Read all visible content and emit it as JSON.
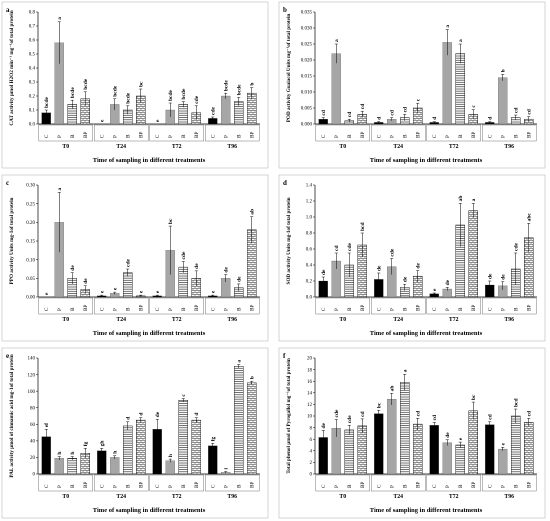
{
  "chart_data": [
    {
      "type": "bar",
      "panel": "a",
      "ylabel": "CAT activity µmol H2O2 min⁻¹ mg⁻¹of total protein",
      "xlabel": "Time of sampling in different treatments",
      "groups": [
        "T0",
        "T24",
        "T72",
        "T96"
      ],
      "categories": [
        "C",
        "P",
        "B",
        "BP"
      ],
      "ylim": [
        0,
        0.8
      ],
      "yticks": [
        0,
        0.1,
        0.2,
        0.3,
        0.4,
        0.5,
        0.6,
        0.7,
        0.8
      ],
      "tick_decimals": 1,
      "values": [
        [
          0.08,
          0.58,
          0.14,
          0.18
        ],
        [
          0.0,
          0.14,
          0.1,
          0.2
        ],
        [
          0.0,
          0.1,
          0.14,
          0.08
        ],
        [
          0.04,
          0.2,
          0.16,
          0.22
        ]
      ],
      "errors": [
        [
          0.02,
          0.15,
          0.03,
          0.05
        ],
        [
          0.0,
          0.04,
          0.03,
          0.05
        ],
        [
          0.0,
          0.05,
          0.02,
          0.05
        ],
        [
          0.01,
          0.02,
          0.03,
          0.04
        ]
      ],
      "letters": [
        [
          "bcde",
          "a",
          "bcde",
          "bcde"
        ],
        [
          "e",
          "bcde",
          "bcde",
          "bc"
        ],
        [
          "e",
          "bcde",
          "bcde",
          "cde"
        ],
        [
          "cde",
          "bcde",
          "bcde",
          "b"
        ]
      ]
    },
    {
      "type": "bar",
      "panel": "b",
      "ylabel": "POD activity Guaiacol Units mg⁻¹of total protein",
      "xlabel": "Time of sampling in different treatments",
      "groups": [
        "T0",
        "T24",
        "T72",
        "T96"
      ],
      "categories": [
        "C",
        "P",
        "B",
        "BP"
      ],
      "ylim": [
        0,
        0.035
      ],
      "yticks": [
        0,
        0.005,
        0.01,
        0.015,
        0.02,
        0.025,
        0.03,
        0.035
      ],
      "tick_decimals": 3,
      "values": [
        [
          0.0015,
          0.022,
          0.001,
          0.003
        ],
        [
          0.0005,
          0.0015,
          0.002,
          0.005
        ],
        [
          0.0005,
          0.0255,
          0.022,
          0.003
        ],
        [
          0.0005,
          0.0145,
          0.002,
          0.0015
        ]
      ],
      "errors": [
        [
          0.0005,
          0.003,
          0.0005,
          0.001
        ],
        [
          0.0002,
          0.0005,
          0.001,
          0.0015
        ],
        [
          0.0002,
          0.004,
          0.003,
          0.0015
        ],
        [
          0.0002,
          0.001,
          0.0008,
          0.0008
        ]
      ],
      "letters": [
        [
          "cd",
          "a",
          "cd",
          "cd"
        ],
        [
          "d",
          "cd",
          "cd",
          "c"
        ],
        [
          "d",
          "a",
          "a",
          "c"
        ],
        [
          "d",
          "b",
          "cd",
          "cd"
        ]
      ]
    },
    {
      "type": "bar",
      "panel": "c",
      "ylabel": "PPO activity Units mg-1of total protein",
      "xlabel": "Time of sampling in different treatments",
      "groups": [
        "T0",
        "T24",
        "T72",
        "T96"
      ],
      "categories": [
        "C",
        "P",
        "B",
        "BP"
      ],
      "ylim": [
        0,
        0.3
      ],
      "yticks": [
        0,
        0.05,
        0.1,
        0.15,
        0.2,
        0.25,
        0.3
      ],
      "tick_decimals": 2,
      "values": [
        [
          0.0,
          0.2,
          0.05,
          0.02
        ],
        [
          0.003,
          0.01,
          0.065,
          0.003
        ],
        [
          0.003,
          0.125,
          0.08,
          0.05
        ],
        [
          0.003,
          0.05,
          0.025,
          0.18
        ]
      ],
      "errors": [
        [
          0.0,
          0.08,
          0.015,
          0.01
        ],
        [
          0.002,
          0.003,
          0.01,
          0.002
        ],
        [
          0.002,
          0.065,
          0.015,
          0.02
        ],
        [
          0.002,
          0.01,
          0.01,
          0.035
        ]
      ],
      "letters": [
        [
          "e",
          "a",
          "de",
          "de"
        ],
        [
          "e",
          "e",
          "cde",
          "e"
        ],
        [
          "e",
          "bc",
          "cde",
          "de"
        ],
        [
          "e",
          "de",
          "de",
          "ab"
        ]
      ]
    },
    {
      "type": "bar",
      "panel": "d",
      "ylabel": "SOD activity Units mg-1of total protein",
      "xlabel": "Time of sampling in different treatments",
      "groups": [
        "T0",
        "T24",
        "T72",
        "T96"
      ],
      "categories": [
        "C",
        "P",
        "B",
        "BP"
      ],
      "ylim": [
        0,
        1.4
      ],
      "yticks": [
        0,
        0.2,
        0.4,
        0.6,
        0.8,
        1,
        1.2,
        1.4
      ],
      "tick_decimals": 1,
      "values": [
        [
          0.2,
          0.45,
          0.4,
          0.65
        ],
        [
          0.22,
          0.38,
          0.12,
          0.26
        ],
        [
          0.04,
          0.1,
          0.9,
          1.08
        ],
        [
          0.15,
          0.14,
          0.35,
          0.74
        ]
      ],
      "errors": [
        [
          0.05,
          0.1,
          0.15,
          0.15
        ],
        [
          0.08,
          0.1,
          0.04,
          0.07
        ],
        [
          0.01,
          0.02,
          0.27,
          0.09
        ],
        [
          0.05,
          0.05,
          0.2,
          0.18
        ]
      ],
      "letters": [
        [
          "de",
          "cd",
          "cde",
          "bcd"
        ],
        [
          "de",
          "cde",
          "de",
          "de"
        ],
        [
          "e",
          "de",
          "ab",
          "a"
        ],
        [
          "de",
          "de",
          "cde",
          "abc"
        ]
      ]
    },
    {
      "type": "bar",
      "panel": "e",
      "ylabel": "PAL activity µmol of cinnamic acid mg-1of total protein",
      "xlabel": "Time of sampling in different treatments",
      "groups": [
        "T0",
        "T24",
        "T72",
        "T96"
      ],
      "categories": [
        "C",
        "P",
        "B",
        "BP"
      ],
      "ylim": [
        0,
        140
      ],
      "yticks": [
        0,
        20,
        40,
        60,
        80,
        100,
        120,
        140
      ],
      "tick_decimals": 0,
      "values": [
        [
          45,
          19,
          19,
          25
        ],
        [
          28,
          20,
          58,
          65
        ],
        [
          54,
          16,
          89,
          65
        ],
        [
          34,
          2,
          130,
          110
        ]
      ],
      "errors": [
        [
          9,
          2,
          2,
          6
        ],
        [
          3,
          2,
          5,
          3
        ],
        [
          12,
          2,
          2,
          3
        ],
        [
          3,
          1,
          2,
          2
        ]
      ],
      "letters": [
        [
          "ef",
          "h",
          "h",
          "fg"
        ],
        [
          "gh",
          "h",
          "d",
          "d"
        ],
        [
          "de",
          "h",
          "c",
          "d"
        ],
        [
          "fg",
          "i",
          "a",
          "b"
        ]
      ]
    },
    {
      "type": "bar",
      "panel": "f",
      "ylabel": "Total phenol µmol of Pyrogallol mg⁻¹of total protein",
      "xlabel": "Time of sampling in different treatments",
      "groups": [
        "T0",
        "T24",
        "T72",
        "T96"
      ],
      "categories": [
        "C",
        "P",
        "B",
        "BP"
      ],
      "ylim": [
        0,
        20
      ],
      "yticks": [
        0,
        2,
        4,
        6,
        8,
        10,
        12,
        14,
        16,
        18,
        20
      ],
      "tick_decimals": 0,
      "values": [
        [
          6.3,
          7.9,
          7.6,
          8.3
        ],
        [
          10.4,
          12.9,
          15.8,
          8.6
        ],
        [
          8.4,
          5.4,
          5.0,
          10.9
        ],
        [
          8.5,
          4.3,
          10.0,
          8.9
        ]
      ],
      "errors": [
        [
          1.2,
          1.5,
          0.8,
          1.2
        ],
        [
          0.6,
          1.0,
          1.4,
          1.0
        ],
        [
          0.5,
          0.5,
          0.5,
          1.5
        ],
        [
          0.5,
          0.3,
          1.2,
          0.7
        ]
      ],
      "letters": [
        [
          "de",
          "cde",
          "cde",
          "cd"
        ],
        [
          "bc",
          "ab",
          "a",
          "cd"
        ],
        [
          "cd",
          "de",
          "e",
          "bc"
        ],
        [
          "cd",
          "e",
          "bcd",
          "cd"
        ]
      ]
    }
  ],
  "styles": {
    "bar_fills": [
      "#000000",
      "#a6a6a6",
      "pattern-horizontal-lines",
      "pattern-brick"
    ],
    "frame_border": "#bbbbbb"
  }
}
